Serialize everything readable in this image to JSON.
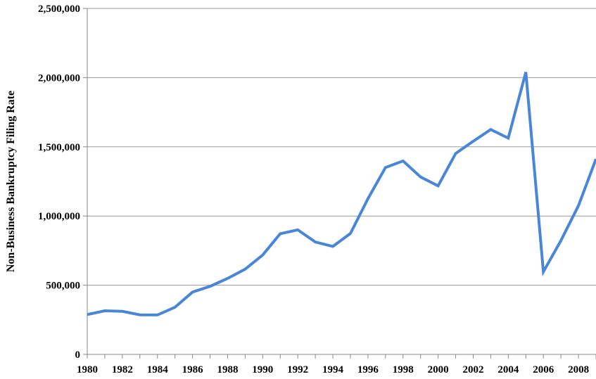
{
  "chart_data": {
    "type": "line",
    "title": "",
    "xlabel": "",
    "ylabel": "Non-Business Bankruptcy Filing Rate",
    "xlim": [
      1980,
      2009
    ],
    "ylim": [
      0,
      2500000
    ],
    "grid": "horizontal",
    "x_tick_labels": [
      "1980",
      "1982",
      "1984",
      "1986",
      "1988",
      "1990",
      "1992",
      "1994",
      "1996",
      "1998",
      "2000",
      "2002",
      "2004",
      "2006",
      "2008"
    ],
    "y_tick_labels": [
      "0",
      "500,000",
      "1,000,000",
      "1,500,000",
      "2,000,000",
      "2,500,000"
    ],
    "series": [
      {
        "color": "#4a86d8",
        "x": [
          1980,
          1981,
          1982,
          1983,
          1984,
          1985,
          1986,
          1987,
          1988,
          1989,
          1990,
          1991,
          1992,
          1993,
          1994,
          1995,
          1996,
          1997,
          1998,
          1999,
          2000,
          2001,
          2002,
          2003,
          2004,
          2005,
          2006,
          2007,
          2008,
          2009
        ],
        "values": [
          288000,
          315000,
          311000,
          286000,
          285000,
          341000,
          450000,
          492000,
          549000,
          616000,
          718000,
          872000,
          900000,
          812000,
          780000,
          874000,
          1125000,
          1350000,
          1398000,
          1282000,
          1218000,
          1452000,
          1540000,
          1625000,
          1563000,
          2040000,
          597000,
          822000,
          1075000,
          1412000
        ]
      }
    ]
  }
}
